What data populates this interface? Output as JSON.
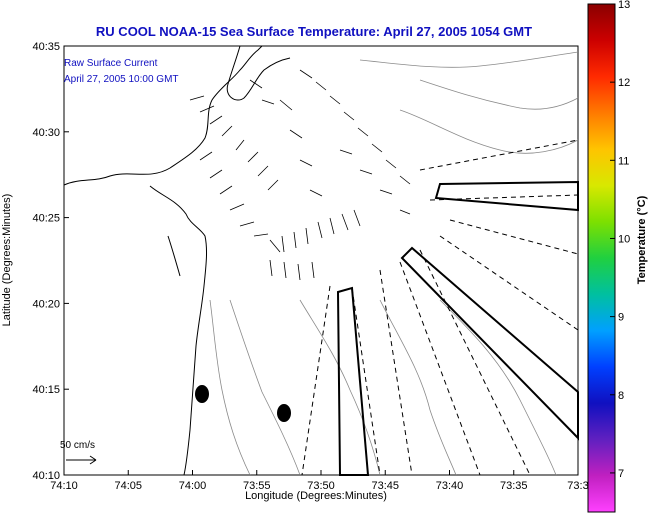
{
  "title": "RU COOL  NOAA-15  Sea Surface Temperature:  April 27, 2005 1054 GMT",
  "legend": {
    "line1": "Raw Surface Current",
    "line2": "April 27, 2005 10:00 GMT",
    "scale_label": "50 cm/s"
  },
  "x_axis": {
    "label": "Longitude (Degrees:Minutes)",
    "ticks": [
      "74:10",
      "74:05",
      "74:00",
      "73:55",
      "73:50",
      "73:45",
      "73:40",
      "73:35",
      "73:3"
    ]
  },
  "y_axis": {
    "label": "Latitude (Degrees:Minutes)",
    "ticks": [
      "40:35",
      "40:30",
      "40:25",
      "40:20",
      "40:15",
      "40:10"
    ]
  },
  "colorbar": {
    "title": "Temperature (°C)",
    "ticks": [
      "13",
      "12",
      "11",
      "10",
      "9",
      "8",
      "7"
    ],
    "colors": [
      "#8b0000",
      "#cc0000",
      "#ff2a00",
      "#ff7a00",
      "#ffc400",
      "#d8e800",
      "#7de000",
      "#20d040",
      "#00c0a0",
      "#00a0ff",
      "#0040ff",
      "#1010c0",
      "#6020c0",
      "#c020c0",
      "#ff40ff"
    ]
  }
}
